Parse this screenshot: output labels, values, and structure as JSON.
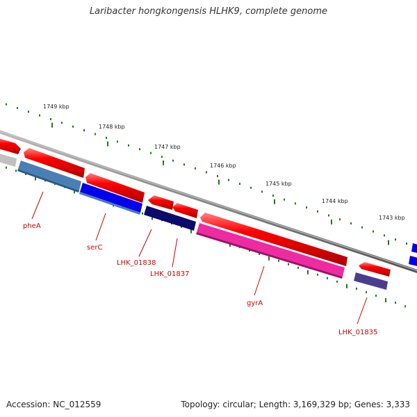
{
  "title": "Laribacter hongkongensis HLHK9, complete genome",
  "accession_label": "Accession: NC_012559",
  "topology_label": "Topology: circular; Length: 3,169,329 bp; Genes: 3,333",
  "ruler": {
    "labels": [
      "1749 kbp",
      "1748 kbp",
      "1747 kbp",
      "1746 kbp",
      "1745 kbp",
      "1744 kbp",
      "1743 kbp"
    ]
  },
  "gene_labels": {
    "pheA": "pheA",
    "serC": "serC",
    "lhk_01838": "LHK_01838",
    "lhk_01837": "LHK_01837",
    "gyrA": "gyrA",
    "lhk_01835": "LHK_01835"
  },
  "colors": {
    "cds_arrow": "#ee0000",
    "backbone": "#808080",
    "tick": "#1a7a1a",
    "label_text": "#cc0000",
    "pheA": "#4a7fb5",
    "serC": "#0000ee",
    "lhk_01838": "#0b0b6e",
    "gyrA": "#ee2ba0",
    "lhk_01835": "#4a3d8f"
  }
}
